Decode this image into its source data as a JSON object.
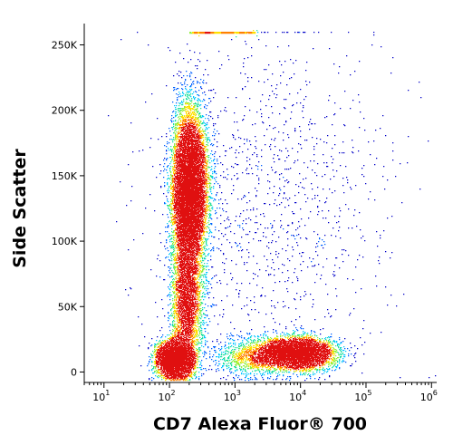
{
  "chart_data": {
    "type": "scatter",
    "subtype": "flow-cytometry density dot plot (pseudocolor)",
    "xlabel": "CD7 Alexa Fluor® 700",
    "ylabel": "Side Scatter",
    "x_scale": "log",
    "xlim": [
      5,
      1200000
    ],
    "ylim": [
      -8000,
      262143
    ],
    "x_ticks": [
      {
        "value": 10,
        "base": "10",
        "exp": "1"
      },
      {
        "value": 100,
        "base": "10",
        "exp": "2"
      },
      {
        "value": 1000,
        "base": "10",
        "exp": "3"
      },
      {
        "value": 10000,
        "base": "10",
        "exp": "4"
      },
      {
        "value": 100000,
        "base": "10",
        "exp": "5"
      },
      {
        "value": 1000000,
        "base": "10",
        "exp": "6"
      }
    ],
    "y_ticks": [
      {
        "value": 0,
        "label": "0"
      },
      {
        "value": 50000,
        "label": "50K"
      },
      {
        "value": 100000,
        "label": "100K"
      },
      {
        "value": 150000,
        "label": "150K"
      },
      {
        "value": 200000,
        "label": "200K"
      },
      {
        "value": 250000,
        "label": "250K"
      }
    ],
    "grid": false,
    "legend": "none",
    "color_scale": [
      "#0000c8",
      "#0060ff",
      "#00c8ff",
      "#20e0a0",
      "#90f040",
      "#ffe000",
      "#ff8000",
      "#e01010"
    ],
    "populations": [
      {
        "x_center": 200,
        "y_center": 140000,
        "x_spread_log": 0.13,
        "y_spread": 30000,
        "weight": 0.42
      },
      {
        "x_center": 120,
        "y_center": 10000,
        "x_spread_log": 0.14,
        "y_spread": 7000,
        "weight": 0.18
      },
      {
        "x_center": 180,
        "y_center": 55000,
        "x_spread_log": 0.12,
        "y_spread": 25000,
        "weight": 0.12
      },
      {
        "x_center": 9000,
        "y_center": 15000,
        "x_spread_log": 0.28,
        "y_spread": 6000,
        "weight": 0.18
      },
      {
        "x_center": 2500,
        "y_center": 12000,
        "x_spread_log": 0.35,
        "y_spread": 7000,
        "weight": 0.05
      },
      {
        "x_center": 3000,
        "y_center": 130000,
        "x_spread_log": 0.9,
        "y_spread": 70000,
        "weight": 0.05
      }
    ],
    "saturation_band": {
      "y_value": 260000,
      "x_range": [
        200,
        2000
      ]
    }
  }
}
